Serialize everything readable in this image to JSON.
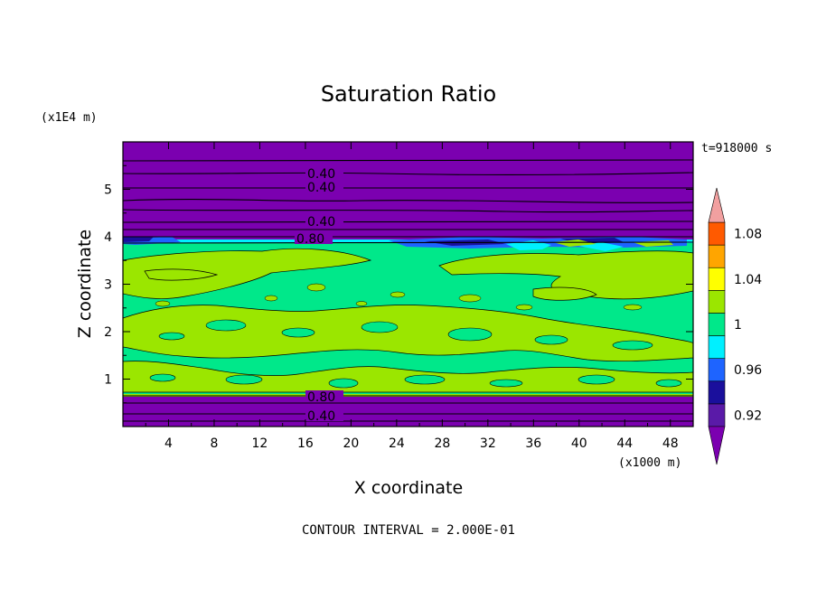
{
  "chart_data": {
    "type": "contour",
    "title": "Saturation Ratio",
    "xlabel": "X coordinate",
    "ylabel": "Z coordinate",
    "x_unit": "(x1000 m)",
    "y_unit": "(x1E4 m)",
    "time_label": "t=918000 s",
    "footer": "CONTOUR INTERVAL = 2.000E-01",
    "xlim": [
      0,
      50
    ],
    "ylim": [
      0,
      6
    ],
    "x_ticks": [
      "4",
      "8",
      "12",
      "16",
      "20",
      "24",
      "28",
      "32",
      "36",
      "40",
      "44",
      "48"
    ],
    "y_ticks": [
      "1",
      "2",
      "3",
      "4",
      "5"
    ],
    "contour_labels": [
      {
        "text": "0.40",
        "x": 17.5,
        "z": 5.2
      },
      {
        "text": "0.40",
        "x": 17.5,
        "z": 4.95
      },
      {
        "text": "0.40",
        "x": 17.5,
        "z": 4.3
      },
      {
        "text": "0.80",
        "x": 16.5,
        "z": 3.97
      },
      {
        "text": "0.80",
        "x": 17.5,
        "z": 0.63
      },
      {
        "text": "0.40",
        "x": 17.5,
        "z": 0.23
      }
    ],
    "colorbar": {
      "levels": [
        0.92,
        0.94,
        0.96,
        0.98,
        1.0,
        1.02,
        1.04,
        1.06,
        1.08,
        1.1
      ],
      "labels": [
        "0.92",
        "0.96",
        "1",
        "1.04",
        "1.08"
      ],
      "colors": [
        "#5a1aa8",
        "#1a0f9c",
        "#1e64ff",
        "#00f0ff",
        "#00e88a",
        "#9be600",
        "#ffff00",
        "#ffa500",
        "#ff5a00",
        "#ff1e1e",
        "#f2a0a0"
      ],
      "under_color": "#7b00b0",
      "over_color": "#f2a0a0"
    },
    "fields": {
      "background_color": "#7b00b0",
      "moist_layer_z": [
        0.65,
        3.9
      ],
      "moist_layer_color": "#00e88a",
      "patch_color": "#9be600"
    }
  }
}
